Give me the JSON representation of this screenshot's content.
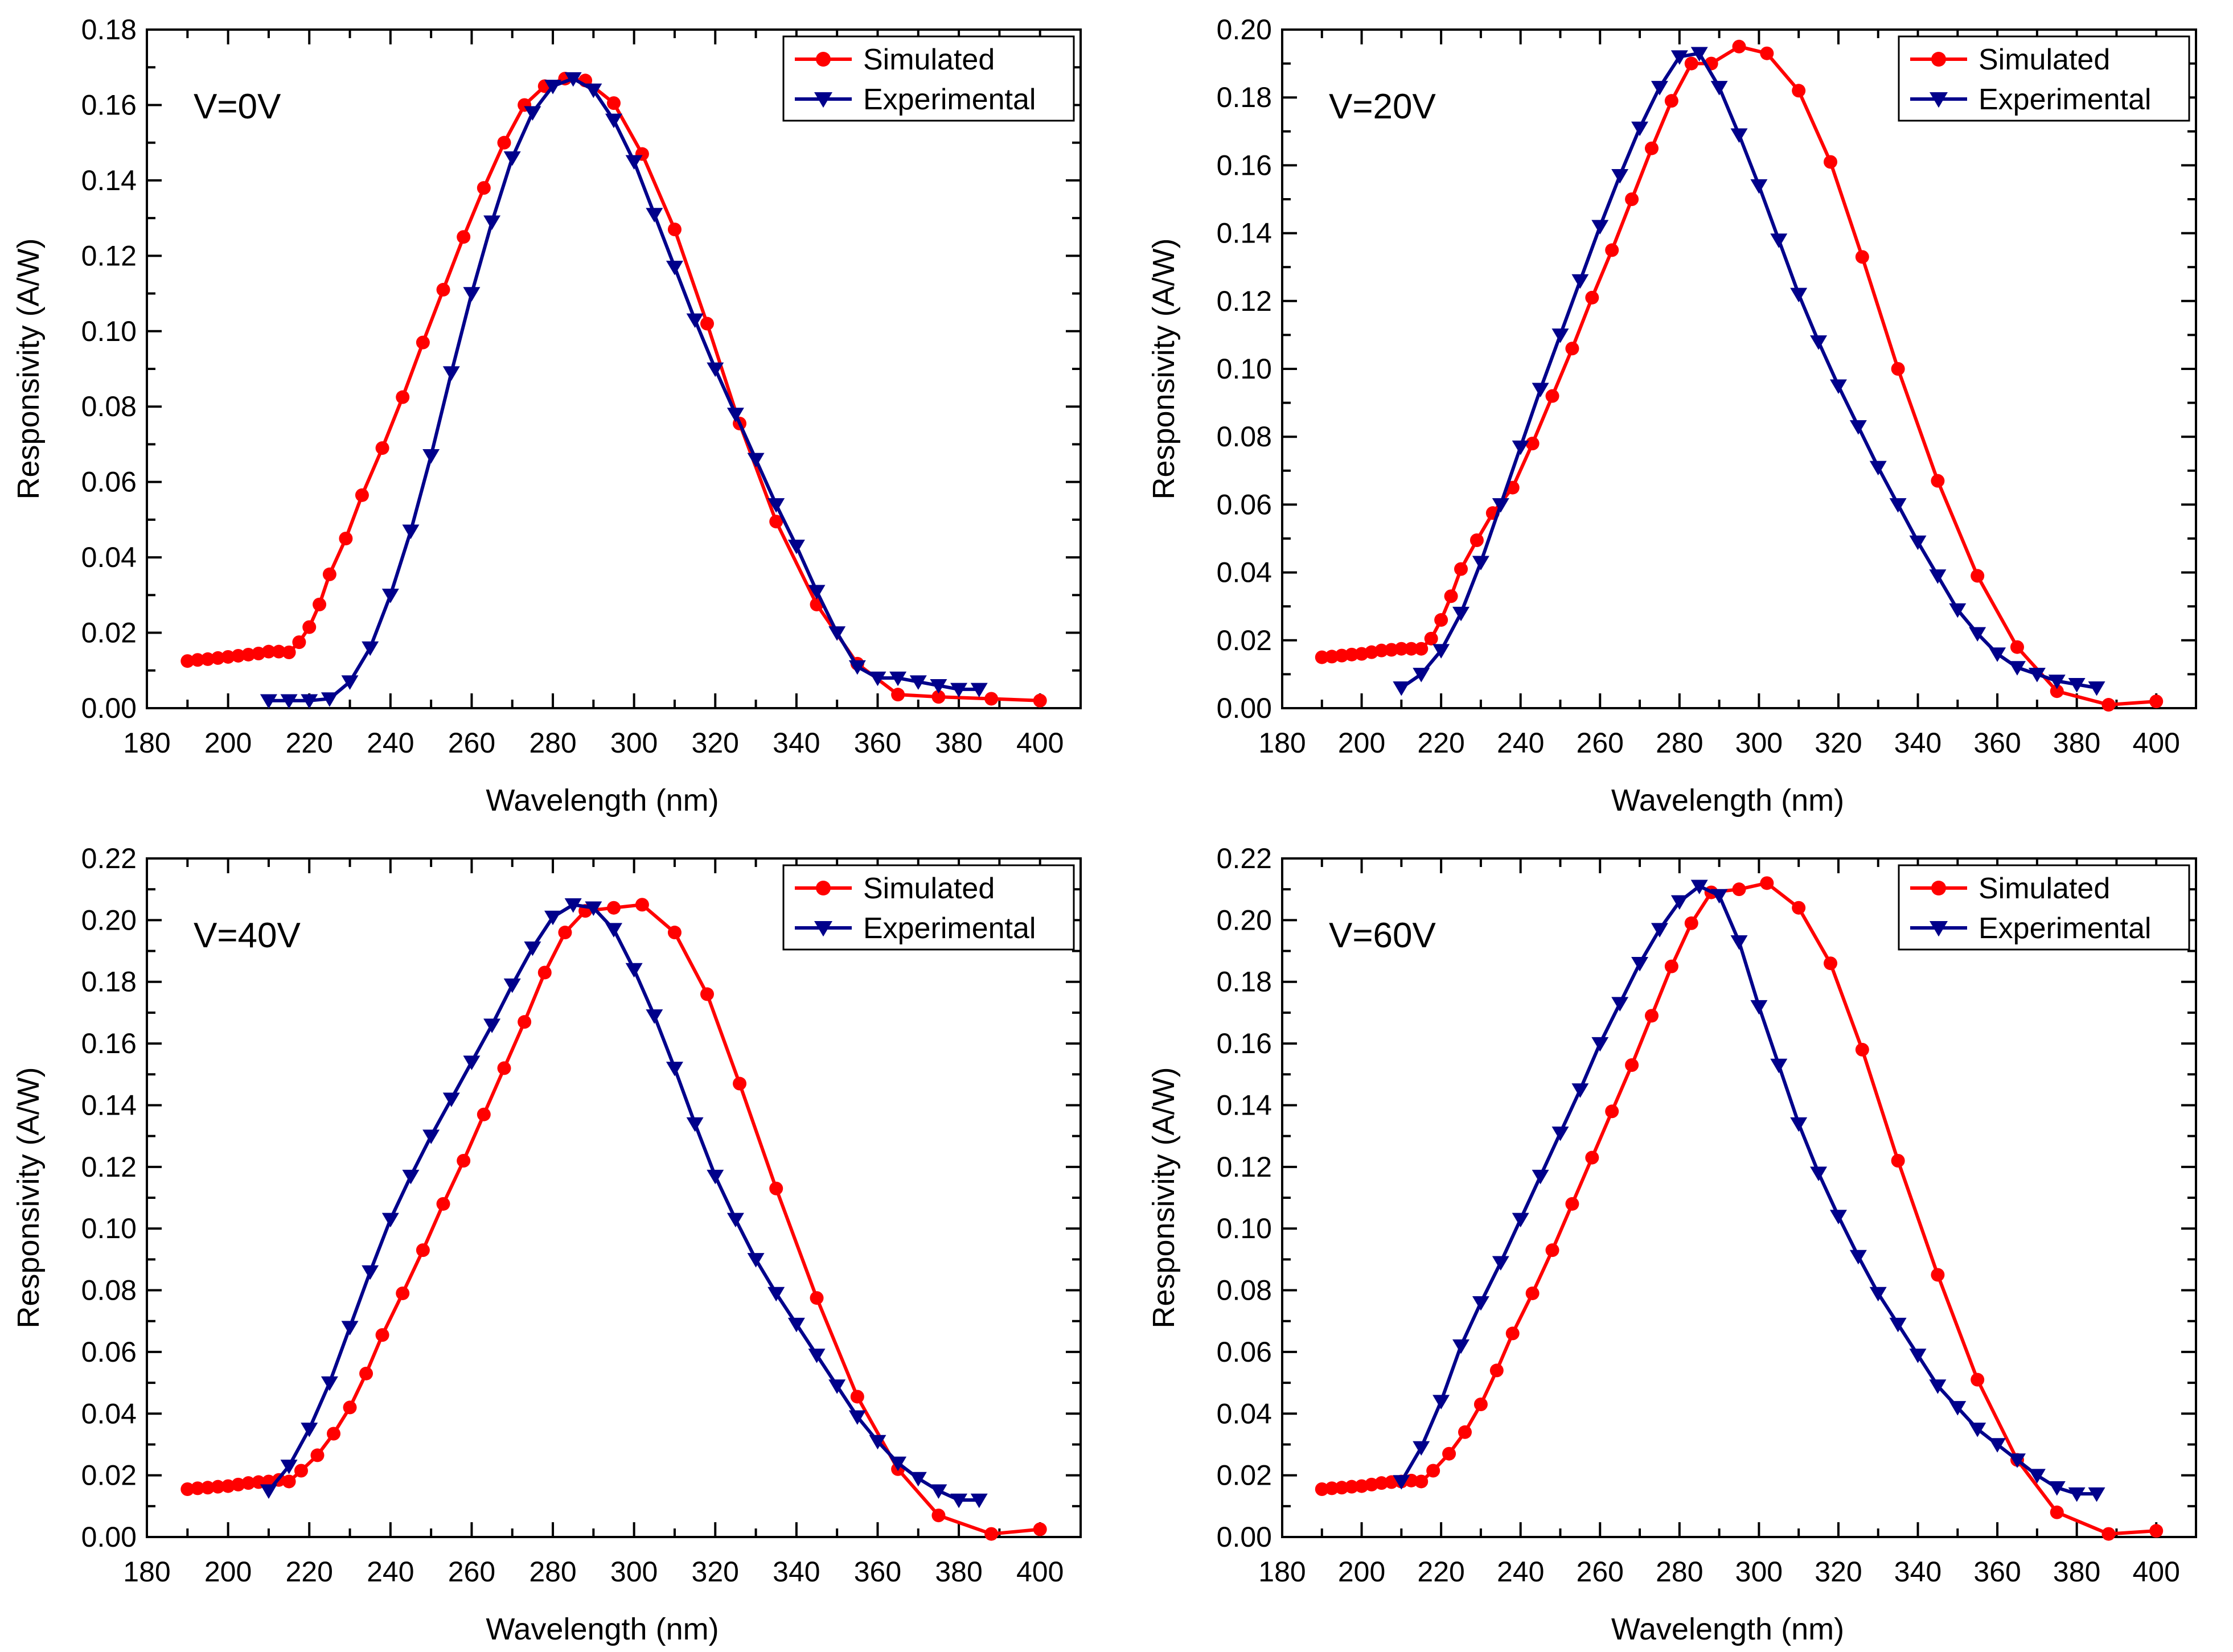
{
  "legend": {
    "simulated_label": "Simulated",
    "experimental_label": "Experimental"
  },
  "colors": {
    "simulated": "#ff0000",
    "experimental": "#00008b",
    "axis": "#000000",
    "background": "#ffffff"
  },
  "chart_data": [
    {
      "type": "line",
      "annotation": "V=0V",
      "xlabel": "Wavelength (nm)",
      "ylabel": "Responsivity (A/W)",
      "xlim": [
        180,
        410
      ],
      "ylim": [
        0.0,
        0.18
      ],
      "xticks": [
        "180",
        "200",
        "220",
        "240",
        "260",
        "280",
        "300",
        "320",
        "340",
        "360",
        "380",
        "400"
      ],
      "yticks": [
        "0.00",
        "0.02",
        "0.04",
        "0.06",
        "0.08",
        "0.10",
        "0.12",
        "0.14",
        "0.16",
        "0.18"
      ],
      "grid": false,
      "legend_position": "top-right",
      "series": [
        {
          "name": "Simulated",
          "marker": "circle",
          "x": [
            190,
            192.5,
            195,
            197.5,
            200,
            202.5,
            205,
            207.5,
            210,
            212.5,
            215,
            217.5,
            220,
            222.5,
            225,
            229,
            233,
            238,
            243,
            248,
            253,
            258,
            263,
            268,
            273,
            278,
            283,
            288,
            295,
            302,
            310,
            318,
            326,
            335,
            345,
            355,
            365,
            375,
            388,
            400
          ],
          "y": [
            0.0125,
            0.0128,
            0.013,
            0.0133,
            0.0136,
            0.0139,
            0.0142,
            0.0145,
            0.015,
            0.015,
            0.0148,
            0.0175,
            0.0215,
            0.0275,
            0.0355,
            0.045,
            0.0565,
            0.069,
            0.0825,
            0.097,
            0.111,
            0.125,
            0.138,
            0.15,
            0.16,
            0.165,
            0.167,
            0.1665,
            0.1605,
            0.147,
            0.127,
            0.102,
            0.0755,
            0.0495,
            0.0275,
            0.0118,
            0.0036,
            0.003,
            0.0025,
            0.002
          ]
        },
        {
          "name": "Experimental",
          "marker": "triangle-down",
          "x": [
            210,
            215,
            220,
            225,
            230,
            235,
            240,
            245,
            250,
            255,
            260,
            265,
            270,
            275,
            280,
            285,
            290,
            295,
            300,
            305,
            310,
            315,
            320,
            325,
            330,
            335,
            340,
            345,
            350,
            355,
            360,
            365,
            370,
            375,
            380,
            385
          ],
          "y": [
            0.002,
            0.002,
            0.002,
            0.0025,
            0.007,
            0.016,
            0.03,
            0.047,
            0.067,
            0.089,
            0.11,
            0.129,
            0.146,
            0.158,
            0.165,
            0.167,
            0.164,
            0.156,
            0.145,
            0.131,
            0.117,
            0.103,
            0.09,
            0.078,
            0.066,
            0.054,
            0.043,
            0.031,
            0.02,
            0.011,
            0.008,
            0.008,
            0.007,
            0.006,
            0.005,
            0.005
          ]
        }
      ]
    },
    {
      "type": "line",
      "annotation": "V=20V",
      "xlabel": "Wavelength (nm)",
      "ylabel": "Responsivity (A/W)",
      "xlim": [
        180,
        410
      ],
      "ylim": [
        0.0,
        0.2
      ],
      "xticks": [
        "180",
        "200",
        "220",
        "240",
        "260",
        "280",
        "300",
        "320",
        "340",
        "360",
        "380",
        "400"
      ],
      "yticks": [
        "0.00",
        "0.02",
        "0.04",
        "0.06",
        "0.08",
        "0.10",
        "0.12",
        "0.14",
        "0.16",
        "0.18",
        "0.20"
      ],
      "grid": false,
      "legend_position": "top-right",
      "series": [
        {
          "name": "Simulated",
          "marker": "circle",
          "x": [
            190,
            192.5,
            195,
            197.5,
            200,
            202.5,
            205,
            207.5,
            210,
            212.5,
            215,
            217.5,
            220,
            222.5,
            225,
            229,
            233,
            238,
            243,
            248,
            253,
            258,
            263,
            268,
            273,
            278,
            283,
            288,
            295,
            302,
            310,
            318,
            326,
            335,
            345,
            355,
            365,
            375,
            388,
            400
          ],
          "y": [
            0.015,
            0.0152,
            0.0155,
            0.0158,
            0.016,
            0.0165,
            0.017,
            0.0172,
            0.0175,
            0.0175,
            0.0175,
            0.0205,
            0.026,
            0.033,
            0.041,
            0.0495,
            0.0575,
            0.065,
            0.078,
            0.092,
            0.106,
            0.121,
            0.135,
            0.15,
            0.165,
            0.179,
            0.19,
            0.19,
            0.195,
            0.193,
            0.182,
            0.161,
            0.133,
            0.1,
            0.067,
            0.039,
            0.018,
            0.005,
            0.001,
            0.002
          ]
        },
        {
          "name": "Experimental",
          "marker": "triangle-down",
          "x": [
            210,
            215,
            220,
            225,
            230,
            235,
            240,
            245,
            250,
            255,
            260,
            265,
            270,
            275,
            280,
            285,
            290,
            295,
            300,
            305,
            310,
            315,
            320,
            325,
            330,
            335,
            340,
            345,
            350,
            355,
            360,
            365,
            370,
            375,
            380,
            385
          ],
          "y": [
            0.006,
            0.01,
            0.017,
            0.028,
            0.043,
            0.06,
            0.077,
            0.094,
            0.11,
            0.126,
            0.142,
            0.157,
            0.171,
            0.183,
            0.192,
            0.193,
            0.183,
            0.169,
            0.154,
            0.138,
            0.122,
            0.108,
            0.095,
            0.083,
            0.071,
            0.06,
            0.049,
            0.039,
            0.029,
            0.022,
            0.016,
            0.012,
            0.01,
            0.008,
            0.007,
            0.006
          ]
        }
      ]
    },
    {
      "type": "line",
      "annotation": "V=40V",
      "xlabel": "Wavelength (nm)",
      "ylabel": "Responsivity (A/W)",
      "xlim": [
        180,
        410
      ],
      "ylim": [
        0.0,
        0.22
      ],
      "xticks": [
        "180",
        "200",
        "220",
        "240",
        "260",
        "280",
        "300",
        "320",
        "340",
        "360",
        "380",
        "400"
      ],
      "yticks": [
        "0.00",
        "0.02",
        "0.04",
        "0.06",
        "0.08",
        "0.10",
        "0.12",
        "0.14",
        "0.16",
        "0.18",
        "0.20",
        "0.22"
      ],
      "grid": false,
      "legend_position": "top-right",
      "series": [
        {
          "name": "Simulated",
          "marker": "circle",
          "x": [
            190,
            192.5,
            195,
            197.5,
            200,
            202.5,
            205,
            207.5,
            210,
            212.5,
            215,
            218,
            222,
            226,
            230,
            234,
            238,
            243,
            248,
            253,
            258,
            263,
            268,
            273,
            278,
            283,
            288,
            295,
            302,
            310,
            318,
            326,
            335,
            345,
            355,
            365,
            375,
            388,
            400
          ],
          "y": [
            0.0155,
            0.0158,
            0.016,
            0.0163,
            0.0165,
            0.017,
            0.0175,
            0.0178,
            0.018,
            0.0185,
            0.018,
            0.0215,
            0.0265,
            0.0335,
            0.042,
            0.053,
            0.0655,
            0.079,
            0.093,
            0.108,
            0.122,
            0.137,
            0.152,
            0.167,
            0.183,
            0.196,
            0.203,
            0.204,
            0.205,
            0.196,
            0.176,
            0.147,
            0.113,
            0.0775,
            0.0455,
            0.022,
            0.007,
            0.001,
            0.0025
          ]
        },
        {
          "name": "Experimental",
          "marker": "triangle-down",
          "x": [
            210,
            215,
            220,
            225,
            230,
            235,
            240,
            245,
            250,
            255,
            260,
            265,
            270,
            275,
            280,
            285,
            290,
            295,
            300,
            305,
            310,
            315,
            320,
            325,
            330,
            335,
            340,
            345,
            350,
            355,
            360,
            365,
            370,
            375,
            380,
            385
          ],
          "y": [
            0.015,
            0.023,
            0.035,
            0.05,
            0.068,
            0.086,
            0.103,
            0.117,
            0.13,
            0.142,
            0.154,
            0.166,
            0.179,
            0.191,
            0.201,
            0.205,
            0.204,
            0.197,
            0.184,
            0.169,
            0.152,
            0.134,
            0.117,
            0.103,
            0.09,
            0.079,
            0.069,
            0.059,
            0.049,
            0.039,
            0.031,
            0.024,
            0.019,
            0.015,
            0.012,
            0.012
          ]
        }
      ]
    },
    {
      "type": "line",
      "annotation": "V=60V",
      "xlabel": "Wavelength (nm)",
      "ylabel": "Responsivity (A/W)",
      "xlim": [
        180,
        410
      ],
      "ylim": [
        0.0,
        0.22
      ],
      "xticks": [
        "180",
        "200",
        "220",
        "240",
        "260",
        "280",
        "300",
        "320",
        "340",
        "360",
        "380",
        "400"
      ],
      "yticks": [
        "0.00",
        "0.02",
        "0.04",
        "0.06",
        "0.08",
        "0.10",
        "0.12",
        "0.14",
        "0.16",
        "0.18",
        "0.20",
        "0.22"
      ],
      "grid": false,
      "legend_position": "top-right",
      "series": [
        {
          "name": "Simulated",
          "marker": "circle",
          "x": [
            190,
            192.5,
            195,
            197.5,
            200,
            202.5,
            205,
            207.5,
            210,
            212.5,
            215,
            218,
            222,
            226,
            230,
            234,
            238,
            243,
            248,
            253,
            258,
            263,
            268,
            273,
            278,
            283,
            288,
            295,
            302,
            310,
            318,
            326,
            335,
            345,
            355,
            365,
            375,
            388,
            400
          ],
          "y": [
            0.0155,
            0.0158,
            0.016,
            0.0163,
            0.0165,
            0.017,
            0.0175,
            0.0178,
            0.018,
            0.0183,
            0.018,
            0.0215,
            0.027,
            0.034,
            0.043,
            0.054,
            0.066,
            0.079,
            0.093,
            0.108,
            0.123,
            0.138,
            0.153,
            0.169,
            0.185,
            0.199,
            0.209,
            0.21,
            0.212,
            0.204,
            0.186,
            0.158,
            0.122,
            0.085,
            0.051,
            0.025,
            0.008,
            0.001,
            0.002
          ]
        },
        {
          "name": "Experimental",
          "marker": "triangle-down",
          "x": [
            210,
            215,
            220,
            225,
            230,
            235,
            240,
            245,
            250,
            255,
            260,
            265,
            270,
            275,
            280,
            285,
            290,
            295,
            300,
            305,
            310,
            315,
            320,
            325,
            330,
            335,
            340,
            345,
            350,
            355,
            360,
            365,
            370,
            375,
            380,
            385
          ],
          "y": [
            0.018,
            0.029,
            0.044,
            0.062,
            0.076,
            0.089,
            0.103,
            0.117,
            0.131,
            0.145,
            0.16,
            0.173,
            0.186,
            0.197,
            0.206,
            0.211,
            0.208,
            0.193,
            0.172,
            0.153,
            0.134,
            0.118,
            0.104,
            0.091,
            0.079,
            0.069,
            0.059,
            0.049,
            0.042,
            0.035,
            0.03,
            0.025,
            0.02,
            0.016,
            0.014,
            0.014
          ]
        }
      ]
    }
  ]
}
